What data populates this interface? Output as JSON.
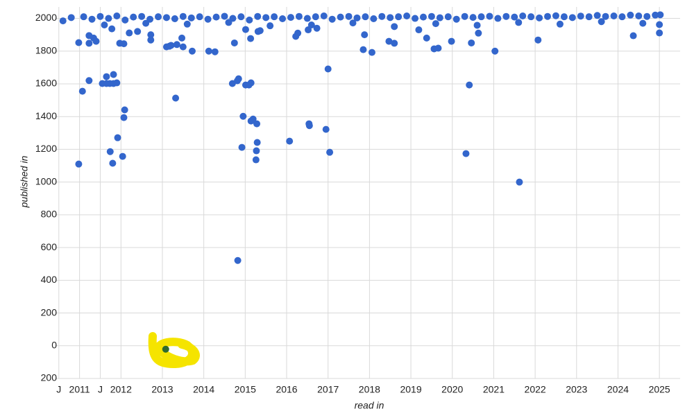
{
  "chart_data": {
    "type": "scatter",
    "xlabel": "read in",
    "ylabel": "published in",
    "xlim": [
      2010.42,
      2025.5
    ],
    "ylim": [
      -200,
      2070
    ],
    "xticks": [
      {
        "value": 2010.5,
        "label": "J"
      },
      2011,
      {
        "value": 2011.5,
        "label": "J"
      },
      2012,
      2013,
      2014,
      2015,
      2016,
      2017,
      2018,
      2019,
      2020,
      2021,
      2022,
      2023,
      2024,
      2025
    ],
    "yticks": [
      {
        "value": -200,
        "label": "200"
      },
      0,
      200,
      400,
      600,
      800,
      1000,
      1200,
      1400,
      1600,
      1800,
      2000
    ],
    "grid": true,
    "series": [
      {
        "color": "#3366cc",
        "x": [
          2010.98,
          2011.07,
          2010.98,
          2011.23,
          2011.23,
          2011.34,
          2011.23,
          2011.4,
          2011.55,
          2011.65,
          2011.65,
          2011.73,
          2011.82,
          2011.82,
          2011.9,
          2011.74,
          2011.8,
          2011.92,
          2012.04,
          2012.07,
          2012.09,
          2011.97,
          2012.07,
          2011.78,
          2012.2,
          2012.4,
          2012.72,
          2012.72,
          2013.32,
          2013.1,
          2013.17,
          2013.21,
          2013.35,
          2013.5,
          2013.47,
          2013.72,
          2014.12,
          2014.27,
          2014.69,
          2014.81,
          2014.84,
          2014.82,
          2014.74,
          2014.92,
          2014.95,
          2015.01,
          2015.09,
          2015.14,
          2015.14,
          2015.19,
          2015.28,
          2015.29,
          2015.27,
          2015.26,
          2015.01,
          2015.13,
          2015.31,
          2015.36,
          2016.07,
          2016.54,
          2016.55,
          2016.95,
          2017.0,
          2017.04,
          2016.22,
          2016.27,
          2016.52,
          2016.73,
          2017.85,
          2018.06,
          2018.6,
          2017.88,
          2018.47,
          2019.19,
          2019.38,
          2019.56,
          2019.66,
          2019.98,
          2020.33,
          2020.41,
          2020.46,
          2020.63,
          2021.03,
          2021.62,
          2022.07,
          2024.37,
          2025.0,
          2025.0,
          2010.6,
          2010.8,
          2011.1,
          2011.3,
          2011.5,
          2011.7,
          2011.9,
          2012.1,
          2012.3,
          2012.5,
          2012.7,
          2012.9,
          2013.1,
          2013.3,
          2013.5,
          2013.7,
          2013.9,
          2014.1,
          2014.3,
          2014.5,
          2014.7,
          2014.9,
          2015.1,
          2015.3,
          2015.5,
          2015.7,
          2015.9,
          2016.1,
          2016.3,
          2016.5,
          2016.7,
          2016.9,
          2017.1,
          2017.3,
          2017.5,
          2017.7,
          2017.9,
          2018.1,
          2018.3,
          2018.5,
          2018.7,
          2018.9,
          2019.1,
          2019.3,
          2019.5,
          2019.7,
          2019.9,
          2020.1,
          2020.3,
          2020.5,
          2020.7,
          2020.9,
          2021.1,
          2021.3,
          2021.5,
          2021.7,
          2021.9,
          2022.1,
          2022.3,
          2022.5,
          2022.7,
          2022.9,
          2023.1,
          2023.3,
          2023.5,
          2023.7,
          2023.9,
          2024.1,
          2024.3,
          2024.5,
          2024.7,
          2024.9,
          2025.02,
          2011.6,
          2012.6,
          2013.6,
          2014.6,
          2015.6,
          2016.6,
          2017.6,
          2018.6,
          2019.6,
          2020.6,
          2021.6,
          2022.6,
          2023.6,
          2024.6
        ],
        "values": [
          1110,
          1555,
          1852,
          1620,
          1895,
          1880,
          1848,
          1860,
          1602,
          1644,
          1602,
          1602,
          1657,
          1602,
          1606,
          1186,
          1115,
          1271,
          1157,
          1394,
          1441,
          1848,
          1845,
          1936,
          1911,
          1920,
          1868,
          1900,
          1513,
          1826,
          1830,
          1835,
          1840,
          1826,
          1880,
          1800,
          1800,
          1796,
          1602,
          1619,
          1631,
          521,
          1850,
          1212,
          1402,
          1593,
          1593,
          1373,
          1606,
          1385,
          1356,
          1242,
          1191,
          1136,
          1932,
          1877,
          1920,
          1925,
          1250,
          1356,
          1345,
          1322,
          1691,
          1182,
          1890,
          1910,
          1930,
          1940,
          1809,
          1792,
          1848,
          1900,
          1860,
          1930,
          1880,
          1814,
          1818,
          1860,
          1174,
          1593,
          1850,
          1910,
          1800,
          1000,
          1868,
          1894,
          1911,
          1962,
          1985,
          2005,
          2010,
          1995,
          2012,
          2000,
          2015,
          1990,
          2008,
          2012,
          1995,
          2010,
          2005,
          1998,
          2012,
          2003,
          2010,
          1995,
          2008,
          2013,
          2000,
          2010,
          1990,
          2012,
          2005,
          2010,
          1998,
          2006,
          2012,
          2000,
          2010,
          2015,
          1995,
          2008,
          2012,
          2003,
          2010,
          1998,
          2012,
          2005,
          2010,
          2015,
          2000,
          2008,
          2012,
          2004,
          2010,
          1995,
          2012,
          2006,
          2010,
          2013,
          2000,
          2012,
          2008,
          2015,
          2010,
          2003,
          2012,
          2016,
          2010,
          2005,
          2014,
          2010,
          2018,
          2012,
          2015,
          2010,
          2020,
          2015,
          2012,
          2020,
          2022,
          1960,
          1970,
          1965,
          1975,
          1955,
          1960,
          1972,
          1950,
          1968,
          1958,
          1975,
          1965,
          1980,
          1970
        ]
      },
      {
        "color": "#2e6b2e",
        "x": [
          2013.08
        ],
        "values": [
          -21
        ]
      }
    ]
  }
}
